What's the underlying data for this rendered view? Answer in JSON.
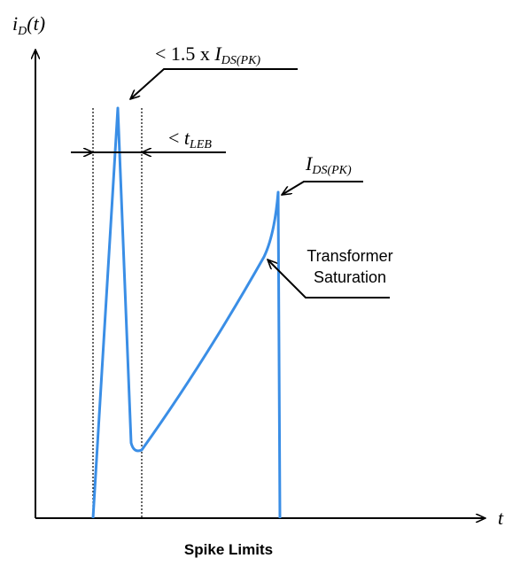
{
  "diagram": {
    "y_axis_label": {
      "main": "i",
      "sub": "D",
      "suffix": "(t)"
    },
    "x_axis_label": "t",
    "spike_limit": {
      "prefix": "< 1.5 x ",
      "main": "I",
      "sub": "DS(PK)"
    },
    "leb": {
      "prefix": "< ",
      "main": "t",
      "sub": "LEB"
    },
    "peak": {
      "main": "I",
      "sub": "DS(PK)"
    },
    "saturation": {
      "lines": [
        "Transformer",
        "Saturation"
      ]
    },
    "caption": "Spike Limits"
  }
}
